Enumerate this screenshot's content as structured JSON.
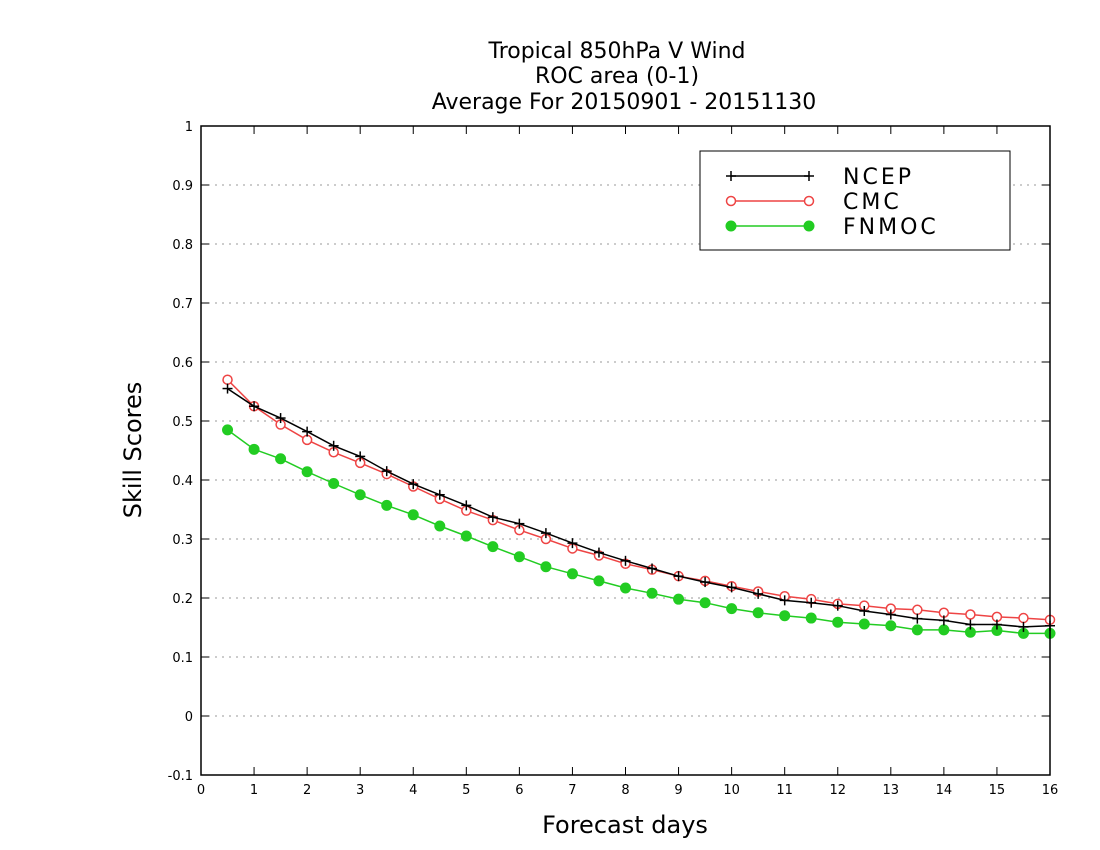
{
  "chart_data": {
    "type": "line",
    "title": [
      "Tropical 850hPa V Wind",
      "ROC area (0-1)",
      "Average For 20150901 - 20151130"
    ],
    "xlabel": "Forecast days",
    "ylabel": "Skill Scores",
    "xlim": [
      0,
      16
    ],
    "ylim": [
      -0.1,
      1
    ],
    "xticks": [
      0,
      1,
      2,
      3,
      4,
      5,
      6,
      7,
      8,
      9,
      10,
      11,
      12,
      13,
      14,
      15,
      16
    ],
    "yticks": [
      -0.1,
      0,
      0.1,
      0.2,
      0.3,
      0.4,
      0.5,
      0.6,
      0.7,
      0.8,
      0.9,
      1
    ],
    "ytick_labels": [
      "-0.1",
      "0",
      "0.1",
      "0.2",
      "0.3",
      "0.4",
      "0.5",
      "0.6",
      "0.7",
      "0.8",
      "0.9",
      "1"
    ],
    "grid": true,
    "legend_position": "top-right",
    "x": [
      0.5,
      1,
      1.5,
      2,
      2.5,
      3,
      3.5,
      4,
      4.5,
      5,
      5.5,
      6,
      6.5,
      7,
      7.5,
      8,
      8.5,
      9,
      9.5,
      10,
      10.5,
      11,
      11.5,
      12,
      12.5,
      13,
      13.5,
      14,
      14.5,
      15,
      15.5,
      16
    ],
    "series": [
      {
        "name": "NCEP",
        "color": "#000000",
        "marker": "plus",
        "values": [
          0.555,
          0.525,
          0.505,
          0.482,
          0.458,
          0.44,
          0.415,
          0.393,
          0.375,
          0.357,
          0.337,
          0.326,
          0.31,
          0.293,
          0.277,
          0.263,
          0.25,
          0.237,
          0.227,
          0.218,
          0.207,
          0.196,
          0.192,
          0.187,
          0.178,
          0.172,
          0.165,
          0.162,
          0.155,
          0.155,
          0.151,
          0.153
        ]
      },
      {
        "name": "CMC",
        "color": "#ee4444",
        "marker": "open-circle",
        "values": [
          0.57,
          0.525,
          0.494,
          0.468,
          0.447,
          0.429,
          0.41,
          0.389,
          0.368,
          0.348,
          0.332,
          0.315,
          0.3,
          0.284,
          0.272,
          0.258,
          0.248,
          0.237,
          0.229,
          0.22,
          0.211,
          0.203,
          0.198,
          0.19,
          0.187,
          0.182,
          0.18,
          0.175,
          0.172,
          0.168,
          0.166,
          0.163
        ]
      },
      {
        "name": "FNMOC",
        "color": "#22cc22",
        "marker": "filled-circle",
        "values": [
          0.485,
          0.452,
          0.436,
          0.414,
          0.394,
          0.375,
          0.357,
          0.341,
          0.322,
          0.305,
          0.287,
          0.27,
          0.253,
          0.241,
          0.229,
          0.217,
          0.208,
          0.198,
          0.192,
          0.182,
          0.175,
          0.17,
          0.166,
          0.159,
          0.156,
          0.153,
          0.146,
          0.146,
          0.142,
          0.145,
          0.14,
          0.14
        ]
      }
    ]
  }
}
